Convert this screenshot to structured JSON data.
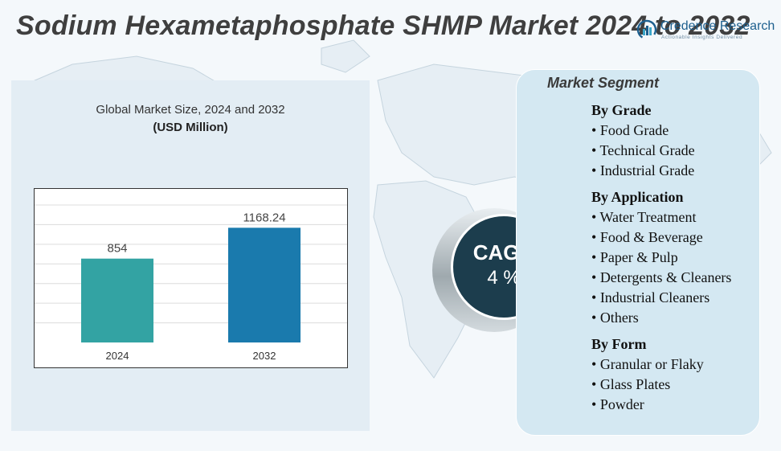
{
  "title": "Sodium Hexametaphosphate SHMP Market 2024 to 2032",
  "logo": {
    "name": "Credence Research",
    "tagline": "Actionable Insights Delivered"
  },
  "chart_data": {
    "type": "bar",
    "title": "Global Market Size, 2024 and 2032",
    "unit": "(USD Million)",
    "categories": [
      "2024",
      "2032"
    ],
    "values": [
      854,
      1168.24
    ],
    "value_labels": [
      "854",
      "1168.24"
    ],
    "colors": [
      "#33a3a3",
      "#1a7aad"
    ],
    "ylim": [
      0,
      1400
    ],
    "grid": true,
    "legend": "none"
  },
  "cagr": {
    "label": "CAGR",
    "value": "4 %"
  },
  "segment": {
    "heading": "Market Segment",
    "groups": [
      {
        "title": "By Grade",
        "items": [
          "Food Grade",
          "Technical Grade",
          "Industrial Grade"
        ]
      },
      {
        "title": "By Application",
        "items": [
          "Water Treatment",
          "Food & Beverage",
          "Paper & Pulp",
          "Detergents & Cleaners",
          "Industrial Cleaners",
          "Others"
        ]
      },
      {
        "title": "By Form",
        "items": [
          "Granular or Flaky",
          "Glass Plates",
          "Powder"
        ]
      }
    ]
  }
}
